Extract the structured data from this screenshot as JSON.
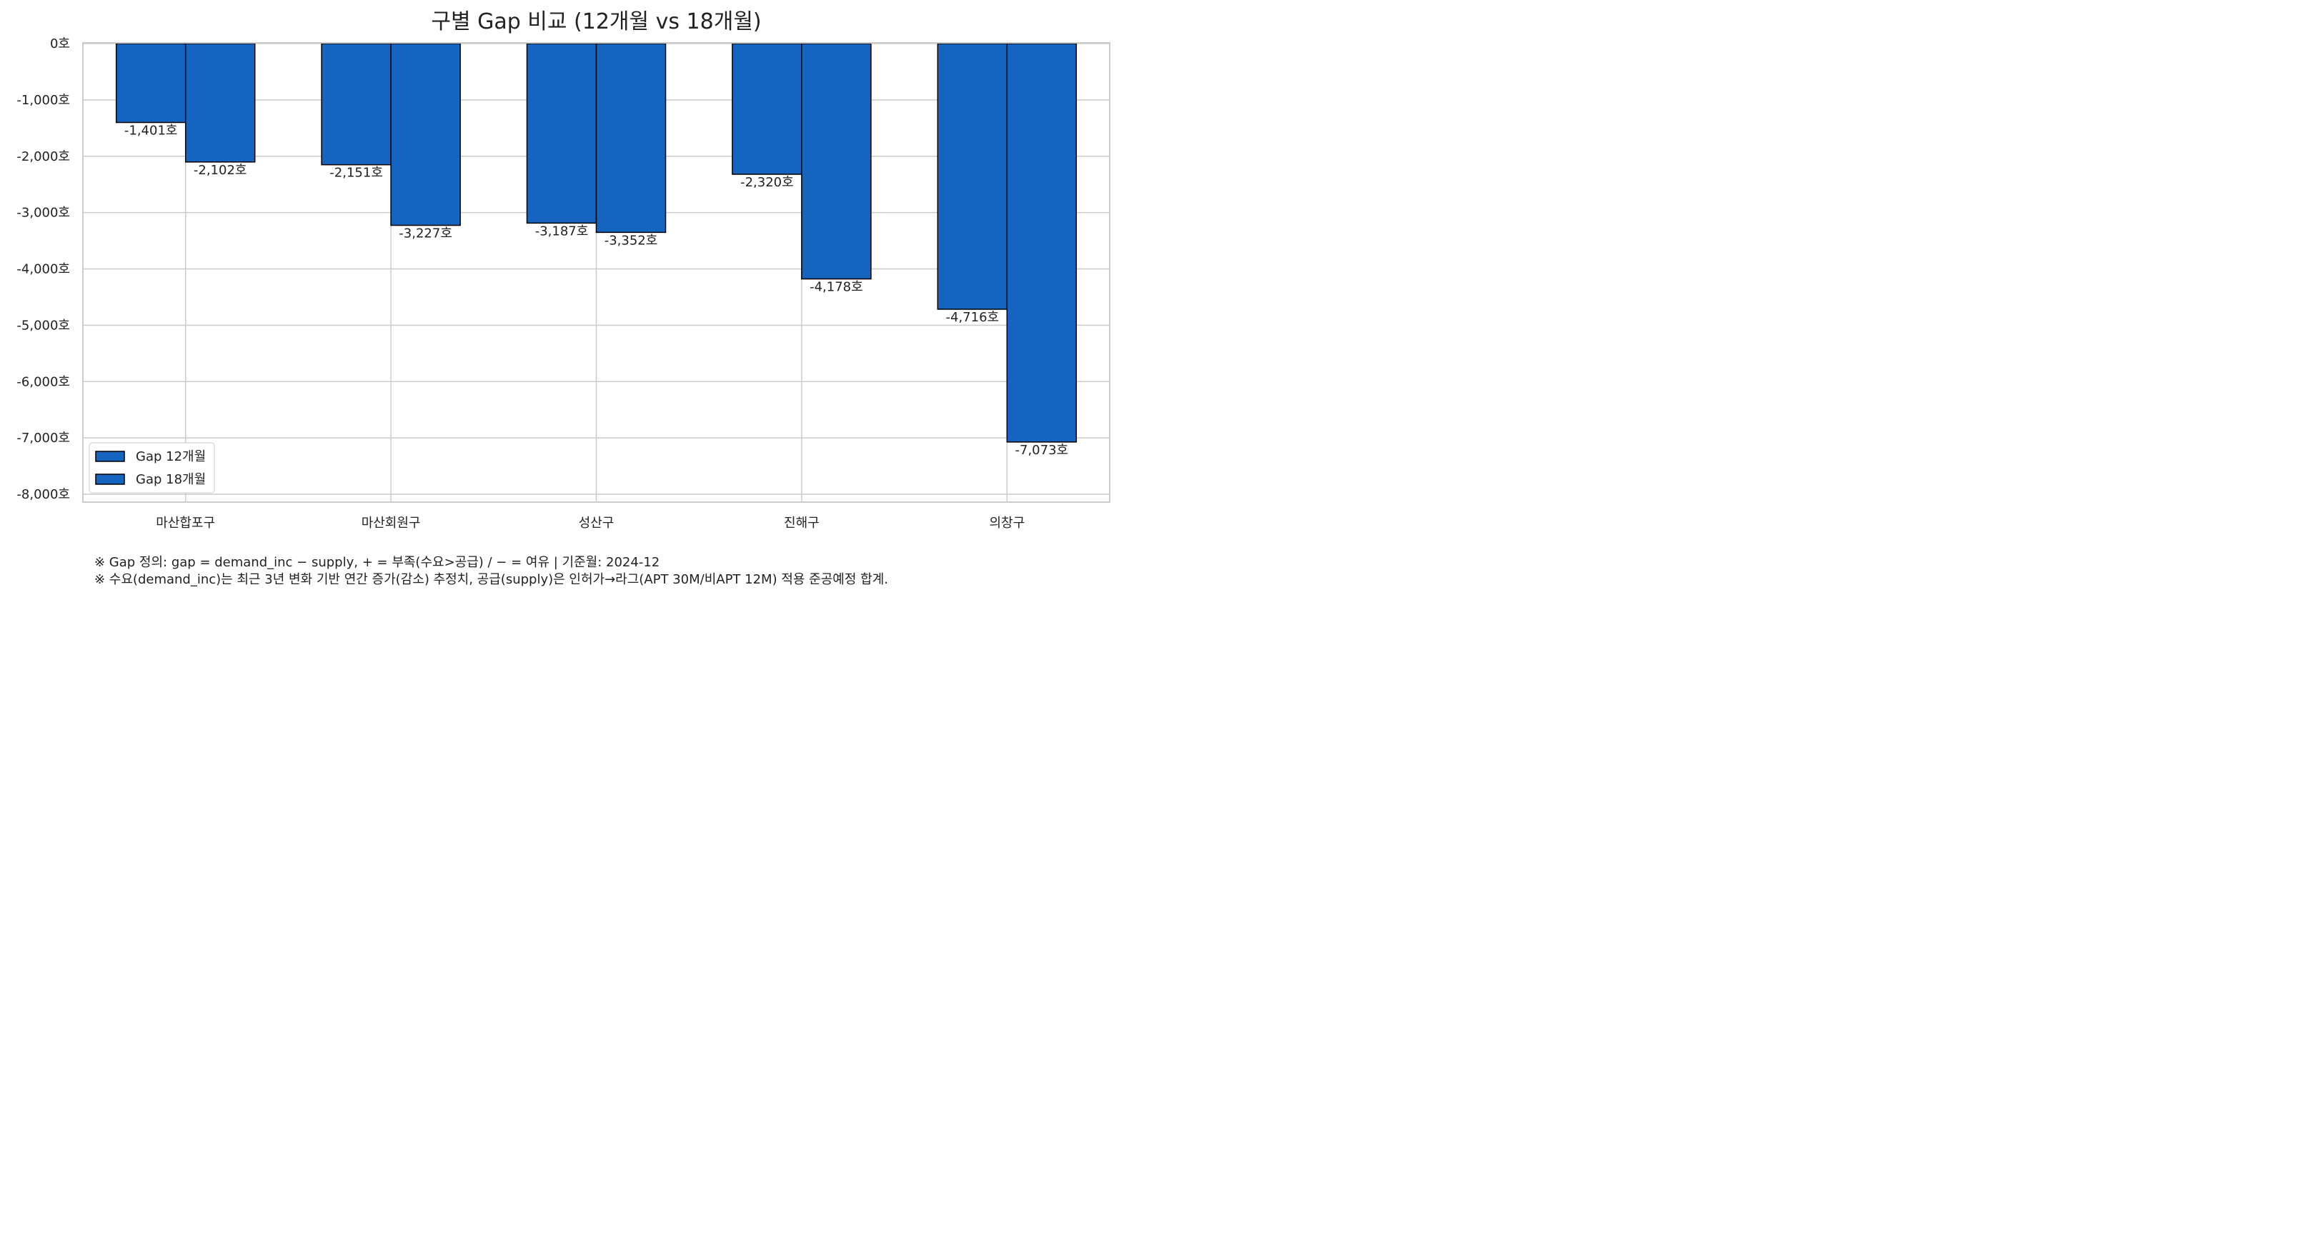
{
  "chart_data": {
    "type": "bar",
    "title": "구별 Gap 비교 (12개월 vs 18개월)",
    "categories": [
      "마산합포구",
      "마산회원구",
      "성산구",
      "진해구",
      "의창구"
    ],
    "series": [
      {
        "name": "Gap 12개월",
        "values": [
          -1401,
          -2151,
          -3187,
          -2320,
          -4716
        ],
        "labels": [
          "-1,401호",
          "-2,151호",
          "-3,187호",
          "-2,320호",
          "-4,716호"
        ]
      },
      {
        "name": "Gap 18개월",
        "values": [
          -2102,
          -3227,
          -3352,
          -4178,
          -7073
        ],
        "labels": [
          "-2,102호",
          "-3,227호",
          "-3,352호",
          "-4,178호",
          "-7,073호"
        ]
      }
    ],
    "ylim": [
      -8000,
      0
    ],
    "yticks": [
      0,
      -1000,
      -2000,
      -3000,
      -4000,
      -5000,
      -6000,
      -7000,
      -8000
    ],
    "ytick_labels": [
      "0호",
      "-1,000호",
      "-2,000호",
      "-3,000호",
      "-4,000호",
      "-5,000호",
      "-6,000호",
      "-7,000호",
      "-8,000호"
    ],
    "xlabel": "",
    "ylabel": "",
    "grid": true,
    "legend_position": "lower-left",
    "bar_color": "#1565c0",
    "bar_edge_color": "#000000",
    "grid_color": "#cccccc"
  },
  "footnotes": [
    "※ Gap 정의: gap = demand_inc  −  supply,  + = 부족(수요>공급)  /  −  = 여유  |  기준월: 2024-12",
    "※ 수요(demand_inc)는 최근 3년 변화 기반 연간 증가(감소) 추정치, 공급(supply)은 인허가→라그(APT 30M/비APT 12M) 적용 준공예정 합계."
  ]
}
